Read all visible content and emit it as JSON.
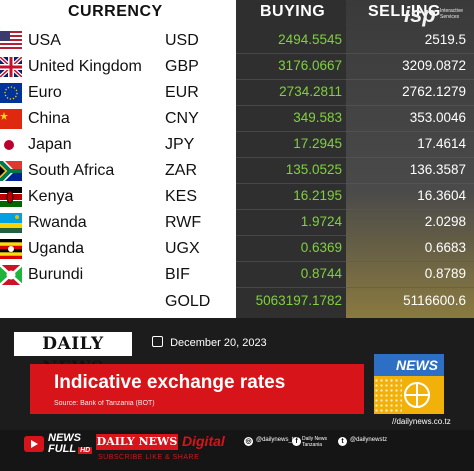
{
  "header": {
    "currency_label": "CURRENCY",
    "buying_label": "BUYING",
    "selling_label": "SELLING",
    "badge_big": "isp",
    "badge_small": "Interactive Services"
  },
  "rates": [
    {
      "country": "USA",
      "code": "USD",
      "buying": "2494.5545",
      "selling": "2519.5",
      "flag": "usa-flag-icon"
    },
    {
      "country": "United Kingdom",
      "code": "GBP",
      "buying": "3176.0667",
      "selling": "3209.0872",
      "flag": "uk-flag-icon"
    },
    {
      "country": "Euro",
      "code": "EUR",
      "buying": "2734.2811",
      "selling": "2762.1279",
      "flag": "eu-flag-icon"
    },
    {
      "country": "China",
      "code": "CNY",
      "buying": "349.583",
      "selling": "353.0046",
      "flag": "china-flag-icon"
    },
    {
      "country": "Japan",
      "code": "JPY",
      "buying": "17.2945",
      "selling": "17.4614",
      "flag": "japan-flag-icon"
    },
    {
      "country": "South Africa",
      "code": "ZAR",
      "buying": "135.0525",
      "selling": "136.3587",
      "flag": "south-africa-flag-icon"
    },
    {
      "country": "Kenya",
      "code": "KES",
      "buying": "16.2195",
      "selling": "16.3604",
      "flag": "kenya-flag-icon"
    },
    {
      "country": "Rwanda",
      "code": "RWF",
      "buying": "1.9724",
      "selling": "2.0298",
      "flag": "rwanda-flag-icon"
    },
    {
      "country": "Uganda",
      "code": "UGX",
      "buying": "0.6369",
      "selling": "0.6683",
      "flag": "uganda-flag-icon"
    },
    {
      "country": "Burundi",
      "code": "BIF",
      "buying": "0.8744",
      "selling": "0.8789",
      "flag": "burundi-flag-icon"
    },
    {
      "country": "",
      "code": "GOLD",
      "buying": "5063197.1782",
      "selling": "5116600.6",
      "flag": ""
    }
  ],
  "banner": {
    "logo": "DAILY NEWS",
    "date": "December 20, 2023",
    "title": "Indicative exchange rates",
    "source": "Source: Bank of Tanzania (BOT)",
    "news_label": "NEWS",
    "url": "//dailynews.co.tz"
  },
  "footer": {
    "newsfull_line1": "NEWS",
    "newsfull_line2": "FULL",
    "newsfull_hd": "HD",
    "logo": "DAILY NEWS",
    "digital": "Digital",
    "subscribe": "SUBSCRIBE LIKE & SHARE",
    "instagram": "@dailynews_tz",
    "facebook": "Daily News Tanzania",
    "twitter": "@dailynewstz"
  },
  "colors": {
    "buying_text": "#7fd23c",
    "selling_text": "#ffffff",
    "brand_red": "#d7141a",
    "news_blue": "#2c6fc4",
    "news_yellow": "#f2b10a"
  }
}
